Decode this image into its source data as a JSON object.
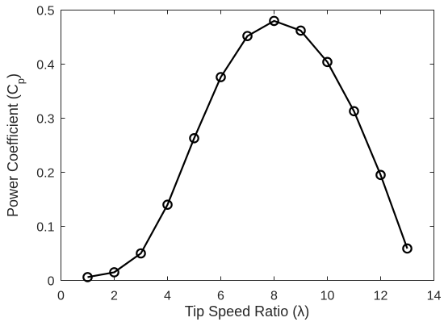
{
  "chart_data": {
    "type": "line",
    "xlabel": "Tip Speed Ratio (λ)",
    "ylabel": "Power Coefficient (C",
    "ylabel_sub": "p",
    "ylabel_end": ")",
    "xlim": [
      0,
      14
    ],
    "ylim": [
      0,
      0.5
    ],
    "xticks": [
      0,
      2,
      4,
      6,
      8,
      10,
      12,
      14
    ],
    "yticks": [
      0,
      0.1,
      0.2,
      0.3,
      0.4,
      0.5
    ],
    "xtick_labels": [
      "0",
      "2",
      "4",
      "6",
      "8",
      "10",
      "12",
      "14"
    ],
    "ytick_labels": [
      "0",
      "0.1",
      "0.2",
      "0.3",
      "0.4",
      "0.5"
    ],
    "grid": false,
    "marker": "open-circle",
    "color": "#000000",
    "series": [
      {
        "x": [
          1,
          2,
          3,
          4,
          5,
          6,
          7,
          8,
          9,
          10,
          11,
          12,
          13
        ],
        "y": [
          0.006,
          0.015,
          0.05,
          0.14,
          0.263,
          0.376,
          0.452,
          0.48,
          0.462,
          0.404,
          0.313,
          0.195,
          0.059
        ]
      }
    ]
  }
}
